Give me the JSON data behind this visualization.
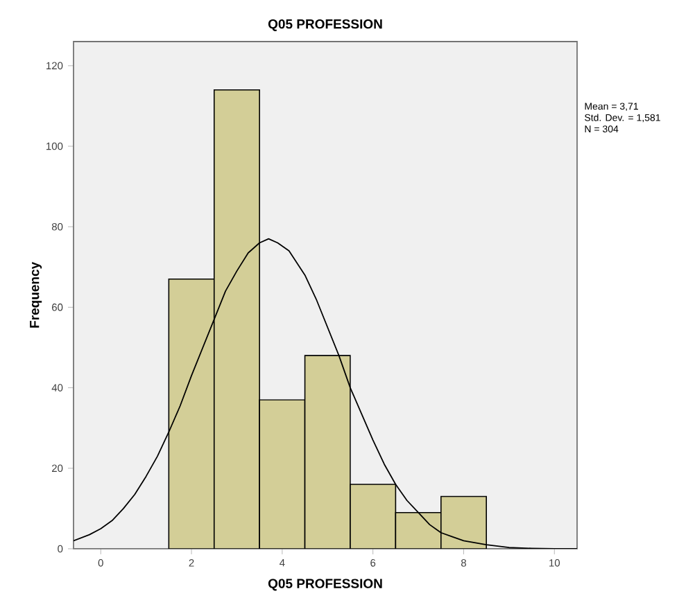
{
  "chart_data": {
    "type": "histogram",
    "title": "Q05 PROFESSION",
    "xlabel": "Q05 PROFESSION",
    "ylabel": "Frequency",
    "annotations": [
      "Mean = 3,71",
      "Std. Dev. = 1,581",
      "N = 304"
    ],
    "bins": [
      1.5,
      2.5,
      3.5,
      4.5,
      5.5,
      6.5,
      7.5,
      8.5
    ],
    "values": [
      67,
      114,
      37,
      48,
      16,
      9,
      13
    ],
    "color": "#d3ce97",
    "series": [
      {
        "type": "line",
        "color": "#000000",
        "x": [
          -0.6,
          -0.25,
          0,
          0.25,
          0.5,
          0.75,
          1,
          1.25,
          1.5,
          1.75,
          2,
          2.25,
          2.5,
          2.75,
          3,
          3.25,
          3.5,
          3.7,
          3.9,
          4.15,
          4.5,
          4.75,
          5,
          5.25,
          5.5,
          5.75,
          6,
          6.25,
          6.5,
          6.75,
          7,
          7.25,
          7.5,
          7.75,
          8,
          8.5,
          9,
          9.5,
          10,
          10.5
        ],
        "values": [
          2,
          3.5,
          5,
          7,
          10,
          13.5,
          18,
          23,
          29,
          35.5,
          43,
          50,
          57,
          64,
          69,
          73.5,
          76,
          77,
          76,
          74,
          68,
          62,
          55,
          48,
          40,
          33.5,
          27,
          21,
          16,
          12,
          9,
          6,
          4,
          3,
          2,
          1,
          0.3,
          0.1,
          0,
          0
        ]
      }
    ],
    "xlim": [
      -0.6,
      10.5
    ],
    "ylim": [
      0,
      126
    ],
    "xticks": [
      0,
      2,
      4,
      6,
      8,
      10
    ],
    "yticks": [
      0,
      20,
      40,
      60,
      80,
      100,
      120
    ],
    "grid": false
  }
}
